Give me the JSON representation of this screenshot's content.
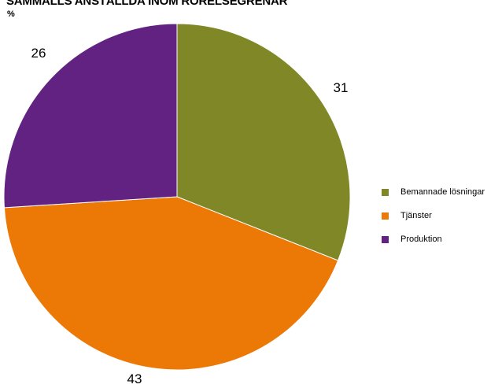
{
  "chart_data": {
    "type": "pie",
    "title": "SAMMALLS ANSTÄLLDA INOM RÖRELSEGRENAR",
    "unit": "%",
    "slices": [
      {
        "label": "Bemannade lösningar",
        "value": 31,
        "color": "#7f8727"
      },
      {
        "label": "Tjänster",
        "value": 43,
        "color": "#ec7805"
      },
      {
        "label": "Produktion",
        "value": 26,
        "color": "#622282"
      }
    ],
    "legend_position": "right"
  }
}
